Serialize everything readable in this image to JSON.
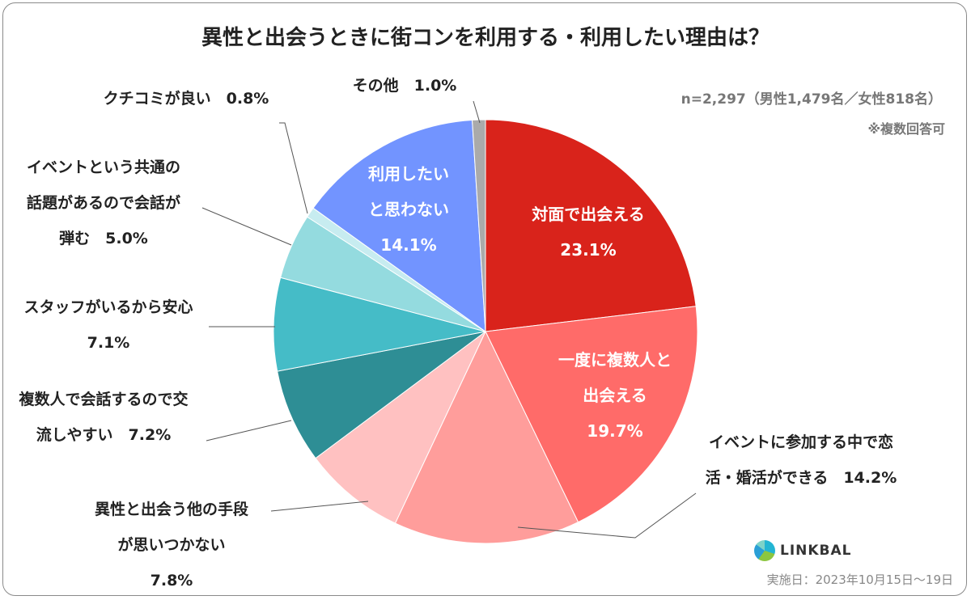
{
  "title": "異性と出会うときに街コンを利用する・利用したい理由は？",
  "sample_note": "n=2,297（男性1,479名／女性818名）",
  "multi_note": "※複数回答可",
  "date_note": "実施日：2023年10月15日～19日",
  "logo_text": "LINKBAL",
  "chart_data": {
    "type": "pie",
    "title": "異性と出会うときに街コンを利用する・利用したい理由は？",
    "unit": "%",
    "slices": [
      {
        "name": "対面で出会える",
        "value": 23.1,
        "color": "#d9231b",
        "label_lines": [
          "対面で出会える",
          "23.1%"
        ]
      },
      {
        "name": "一度に複数人と出会える",
        "value": 19.7,
        "color": "#ff6b69",
        "label_lines": [
          "一度に複数人と",
          "出会える",
          "19.7%"
        ]
      },
      {
        "name": "イベントに参加する中で恋活・婚活ができる",
        "value": 14.2,
        "color": "#ff9d9b",
        "label_lines": [
          "イベントに参加する中で恋",
          "活・婚活ができる　14.2%"
        ]
      },
      {
        "name": "異性と出会う他の手段が思いつかない",
        "value": 7.8,
        "color": "#ffc1c1",
        "label_lines": [
          "異性と出会う他の手段",
          "が思いつかない",
          "7.8%"
        ]
      },
      {
        "name": "複数人で会話するので交流しやすい",
        "value": 7.2,
        "color": "#2e8e95",
        "label_lines": [
          "複数人で会話するので交",
          "流しやすい　7.2%"
        ]
      },
      {
        "name": "スタッフがいるから安心",
        "value": 7.1,
        "color": "#45bcc7",
        "label_lines": [
          "スタッフがいるから安心",
          "7.1%"
        ]
      },
      {
        "name": "イベントという共通の話題があるので会話が弾む",
        "value": 5.0,
        "color": "#94dbdf",
        "label_lines": [
          "イベントという共通の",
          "話題があるので会話が",
          "弾む　5.0%"
        ]
      },
      {
        "name": "クチコミが良い",
        "value": 0.8,
        "color": "#c7ecf0",
        "label_lines": [
          "クチコミが良い　0.8%"
        ]
      },
      {
        "name": "利用したいと思わない",
        "value": 14.1,
        "color": "#7294ff",
        "label_lines": [
          "利用したい",
          "と思わない",
          "14.1%"
        ]
      },
      {
        "name": "その他",
        "value": 1.0,
        "color": "#aaaaaa",
        "label_lines": [
          "その他　1.0%"
        ]
      }
    ]
  }
}
